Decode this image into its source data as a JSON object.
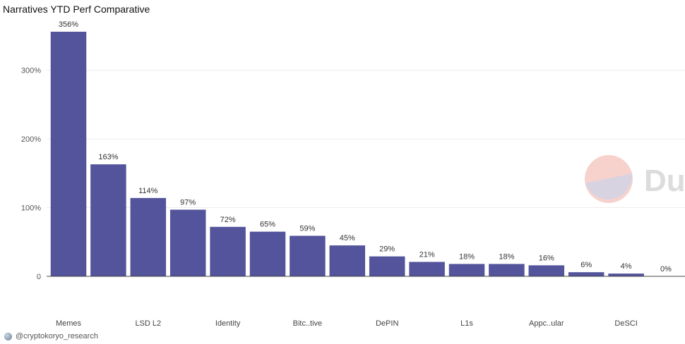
{
  "chart_data": {
    "type": "bar",
    "title": "Narratives YTD Perf Comparative",
    "xlabel": "",
    "ylabel": "",
    "ylim": [
      0,
      370
    ],
    "yticks": [
      0,
      100,
      200,
      300
    ],
    "ytick_labels": [
      "0",
      "100%",
      "200%",
      "300%"
    ],
    "grid": true,
    "bar_color": "#53549b",
    "values": [
      356,
      163,
      114,
      97,
      72,
      65,
      59,
      45,
      29,
      21,
      18,
      18,
      16,
      6,
      4,
      0
    ],
    "value_labels": [
      "356%",
      "163%",
      "114%",
      "97%",
      "72%",
      "65%",
      "59%",
      "45%",
      "29%",
      "21%",
      "18%",
      "18%",
      "16%",
      "6%",
      "4%",
      "0%"
    ],
    "xtick_labels": [
      "Memes",
      "LSD L2",
      "Identity",
      "Bitc..tive",
      "DePIN",
      "L1s",
      "Appc..ular",
      "DeSCI"
    ],
    "xtick_bar_index": [
      0,
      2,
      4,
      6,
      8,
      10,
      12,
      14
    ]
  },
  "watermark": {
    "text": "Du"
  },
  "footer": {
    "handle": "@cryptokoryo_research"
  }
}
